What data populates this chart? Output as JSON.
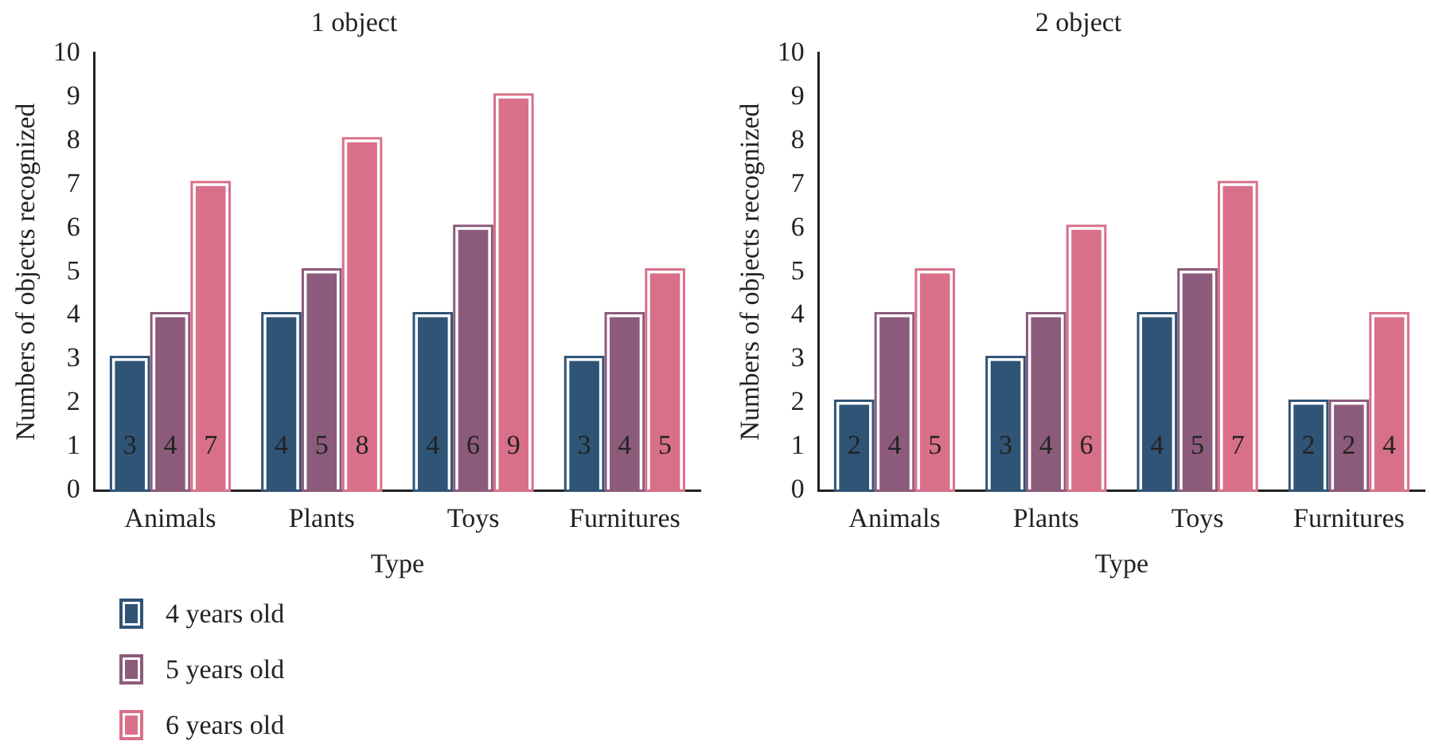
{
  "chart_data": [
    {
      "type": "bar",
      "title": "1 object",
      "xlabel": "Type",
      "ylabel": "Numbers of objects recognized",
      "categories": [
        "Animals",
        "Plants",
        "Toys",
        "Furnitures"
      ],
      "series": [
        {
          "name": "4 years old",
          "color": "#2f5476",
          "values": [
            3,
            4,
            4,
            3
          ]
        },
        {
          "name": "5 years old",
          "color": "#8c5b7b",
          "values": [
            4,
            5,
            6,
            4
          ]
        },
        {
          "name": "6 years old",
          "color": "#d9708a",
          "values": [
            7,
            8,
            9,
            5
          ]
        }
      ],
      "ylim": [
        0,
        10
      ],
      "yticks": [
        0,
        1,
        2,
        3,
        4,
        5,
        6,
        7,
        8,
        9,
        10
      ],
      "grid": false,
      "data_labels": true,
      "legend": "bottom left"
    },
    {
      "type": "bar",
      "title": "2 object",
      "xlabel": "Type",
      "ylabel": "Numbers of objects recognized",
      "categories": [
        "Animals",
        "Plants",
        "Toys",
        "Furnitures"
      ],
      "series": [
        {
          "color": "#2f5476",
          "values": [
            2,
            3,
            4,
            2
          ]
        },
        {
          "color": "#8c5b7b",
          "values": [
            4,
            4,
            5,
            2
          ]
        },
        {
          "color": "#d9708a",
          "values": [
            5,
            6,
            7,
            4
          ]
        }
      ],
      "ylim": [
        0,
        10
      ],
      "yticks": [
        0,
        1,
        2,
        3,
        4,
        5,
        6,
        7,
        8,
        9,
        10
      ],
      "grid": false,
      "data_labels": true,
      "legend": false
    }
  ]
}
